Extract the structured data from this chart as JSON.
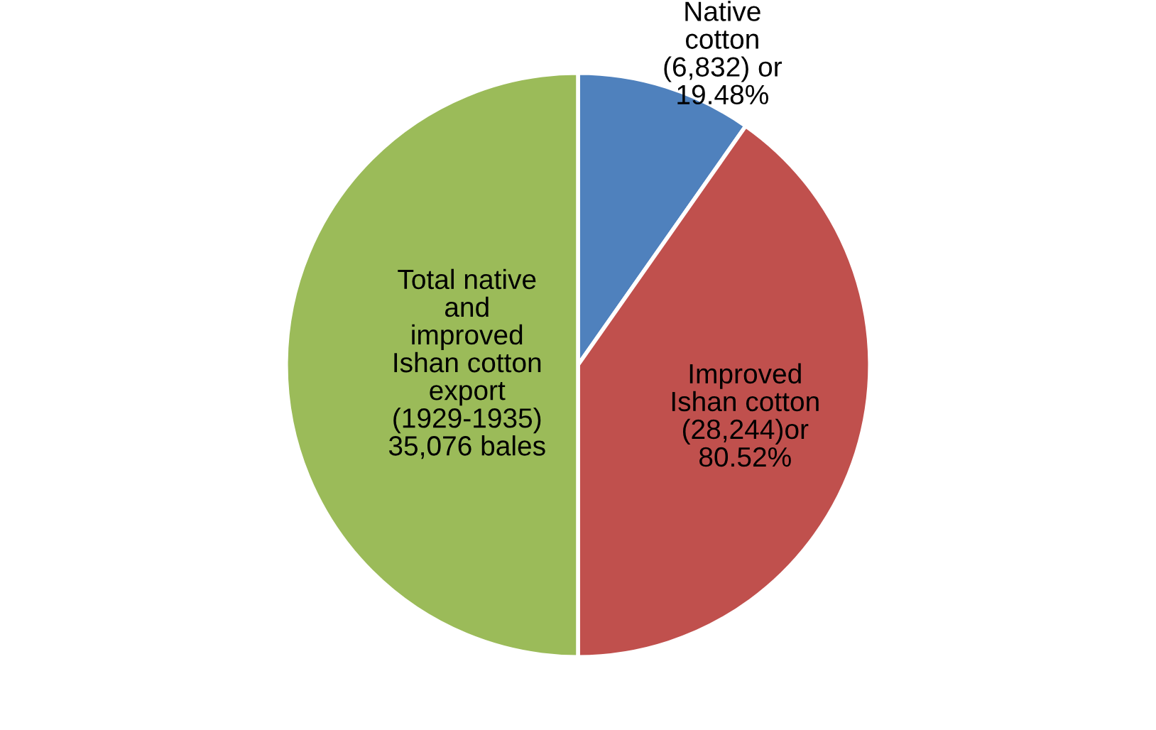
{
  "chart_data": {
    "type": "pie",
    "categories": [
      "Native\ncotton\n(6,832) or\n19.48%",
      "Improved\nIshan cotton\n(28,244)or\n80.52%",
      "Total native\nand\nimproved\nIshan cotton\nexport\n(1929-1935)\n35,076 bales"
    ],
    "values": [
      6832,
      28244,
      35076
    ],
    "colors": [
      "#4f81bd",
      "#c0504d",
      "#9bbb59"
    ]
  }
}
